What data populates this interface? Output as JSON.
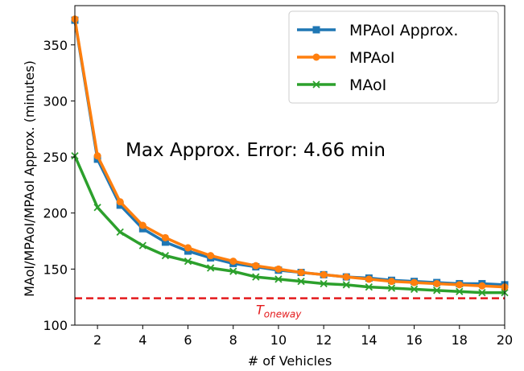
{
  "chart_data": {
    "type": "line",
    "xlabel": "# of Vehicles",
    "ylabel": "MAoI/MPAoI/MPAoI Approx. (minutes)",
    "xlim": [
      1,
      20
    ],
    "ylim": [
      100,
      385
    ],
    "xticks": [
      2,
      4,
      6,
      8,
      10,
      12,
      14,
      16,
      18,
      20
    ],
    "yticks": [
      100,
      150,
      200,
      250,
      300,
      350
    ],
    "grid": false,
    "legend_position": "top-right",
    "x": [
      1,
      2,
      3,
      4,
      5,
      6,
      7,
      8,
      9,
      10,
      11,
      12,
      13,
      14,
      15,
      16,
      17,
      18,
      19,
      20
    ],
    "series": [
      {
        "name": "MPAoI Approx.",
        "color": "#1f77b4",
        "marker": "square",
        "values": [
          372,
          248,
          207,
          186,
          174,
          166,
          160,
          155,
          152,
          149,
          147,
          145,
          143,
          142,
          140,
          139,
          138,
          137,
          137,
          136
        ]
      },
      {
        "name": "MPAoI",
        "color": "#ff7f0e",
        "marker": "circle",
        "values": [
          373,
          251,
          210,
          189,
          178,
          169,
          162,
          157,
          153,
          150,
          147,
          145,
          143,
          141,
          139,
          138,
          137,
          136,
          135,
          134
        ]
      },
      {
        "name": "MAoI",
        "color": "#2ca02c",
        "marker": "x",
        "values": [
          251,
          205,
          183,
          171,
          162,
          157,
          151,
          148,
          143,
          141,
          139,
          137,
          136,
          134,
          133,
          132,
          131,
          130,
          129,
          129
        ]
      }
    ],
    "annotations": [
      {
        "text": "Max Approx. Error: 4.66 min"
      }
    ],
    "reference_line": {
      "value": 124,
      "color": "#e41a1c",
      "style": "dashed",
      "label": "T",
      "label_subscript": "oneway"
    }
  }
}
